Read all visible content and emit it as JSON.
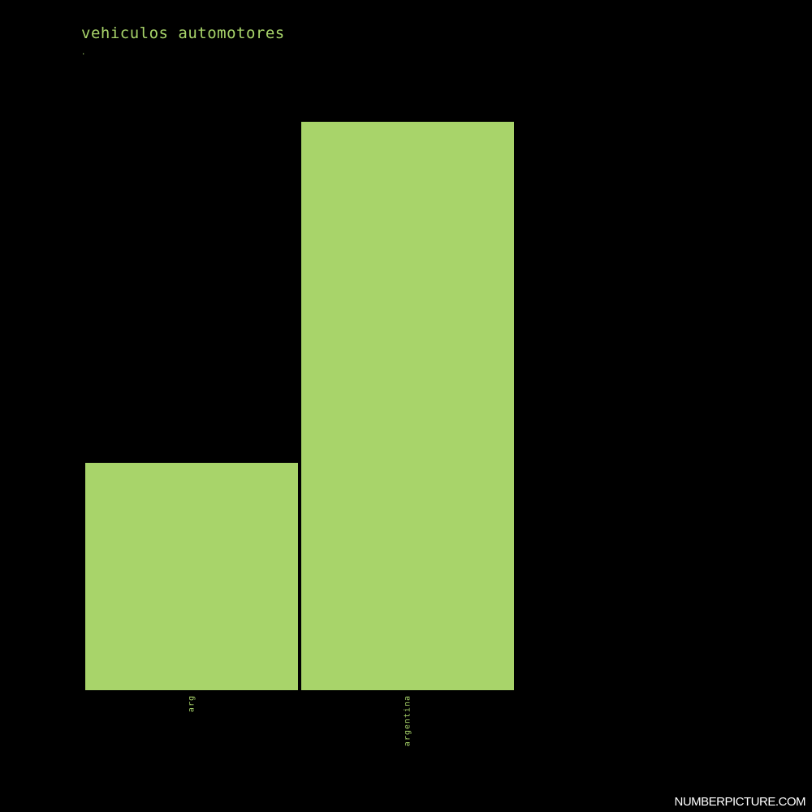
{
  "chart_data": {
    "type": "bar",
    "title": "vehiculos automotores",
    "subtitle": ".",
    "categories": [
      "arg",
      "argentina"
    ],
    "values": [
      40,
      100
    ],
    "ylim": [
      0,
      100
    ],
    "xlabel": "",
    "ylabel": "",
    "grid": false,
    "bar_color": "#a8d46a"
  },
  "colors": {
    "background": "#000000",
    "accent": "#a8d46a",
    "watermark": "#ffffff"
  },
  "footer": {
    "watermark": "NUMBERPICTURE.COM"
  }
}
